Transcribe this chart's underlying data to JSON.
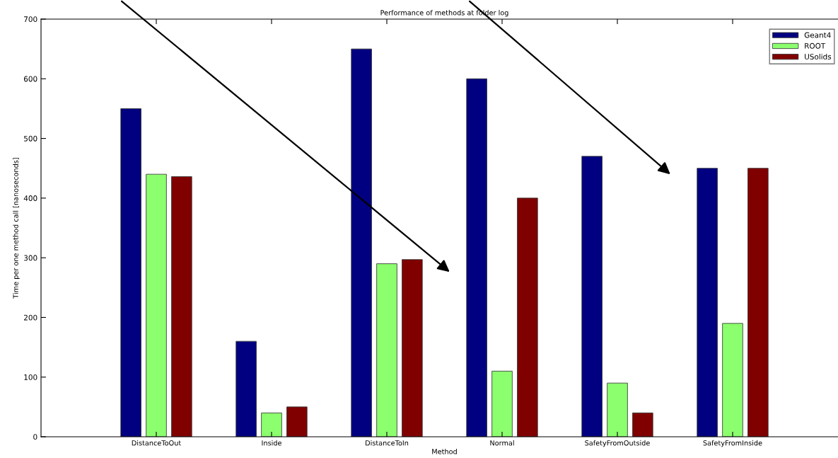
{
  "chart_data": {
    "type": "bar",
    "title": "Performance of methods at folder log",
    "xlabel": "Method",
    "ylabel": "Time per one method call [nanoseconds]",
    "categories": [
      "DistanceToOut",
      "Inside",
      "DistanceToIn",
      "Normal",
      "SafetyFromOutside",
      "SafetyFromInside"
    ],
    "series": [
      {
        "name": "Geant4",
        "color": "#000080",
        "values": [
          550,
          160,
          650,
          600,
          470,
          450
        ]
      },
      {
        "name": "ROOT",
        "color": "#8cff6e",
        "values": [
          440,
          40,
          290,
          110,
          90,
          190
        ]
      },
      {
        "name": "USolids",
        "color": "#800000",
        "values": [
          436,
          50,
          297,
          400,
          40,
          450
        ]
      }
    ],
    "ylim": [
      0,
      700
    ],
    "yticks": [
      0,
      100,
      200,
      300,
      400,
      500,
      600,
      700
    ],
    "grid": false,
    "legend": "top right"
  }
}
